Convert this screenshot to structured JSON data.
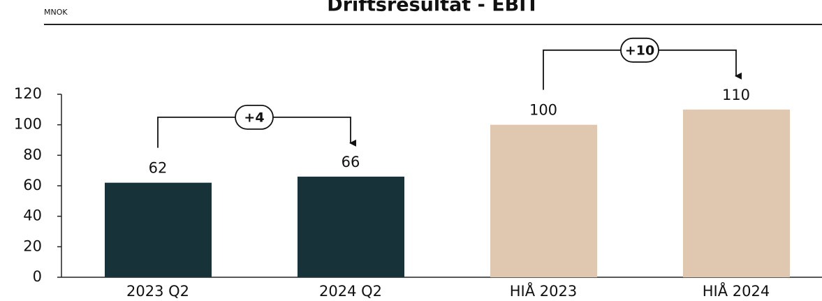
{
  "chart_data": {
    "type": "bar",
    "title": "Driftsresultat - EBIT",
    "unit_label": "MNOK",
    "categories": [
      "2023 Q2",
      "2024 Q2",
      "HIÅ 2023",
      "HIÅ 2024"
    ],
    "values": [
      62,
      66,
      100,
      110
    ],
    "colors": [
      "#18323a",
      "#18323a",
      "#dfc7b0",
      "#dfc7b0"
    ],
    "annotations": [
      "+4",
      "+10"
    ],
    "ylim": [
      0,
      120
    ],
    "yticks": [
      0,
      20,
      40,
      60,
      80,
      100,
      120
    ],
    "grid": false
  }
}
